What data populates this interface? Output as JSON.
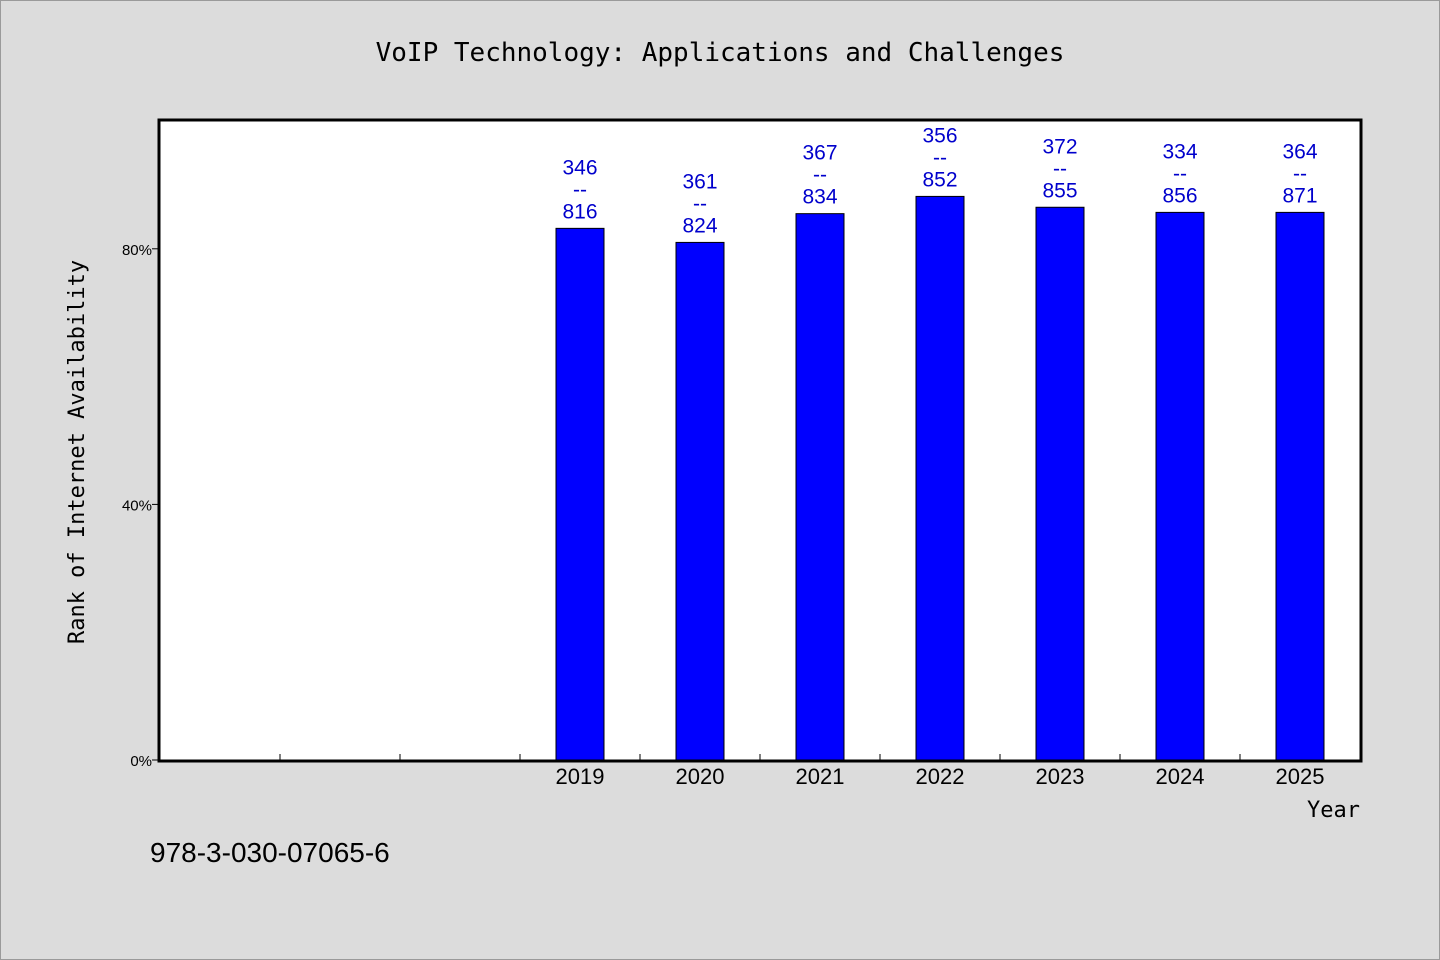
{
  "chart_data": {
    "type": "bar",
    "title": "VoIP Technology: Applications and Challenges",
    "xlabel": "Year",
    "ylabel": "Rank of Internet Availability",
    "categories": [
      "",
      "",
      "",
      "2019",
      "2020",
      "2021",
      "2022",
      "2023",
      "2024",
      "2025"
    ],
    "values": [
      null,
      null,
      null,
      83.2,
      81.0,
      85.5,
      88.2,
      86.5,
      85.7,
      85.7
    ],
    "bar_labels": [
      null,
      null,
      null,
      [
        "346",
        "--",
        "816"
      ],
      [
        "361",
        "--",
        "824"
      ],
      [
        "367",
        "--",
        "834"
      ],
      [
        "356",
        "--",
        "852"
      ],
      [
        "372",
        "--",
        "855"
      ],
      [
        "334",
        "--",
        "856"
      ],
      [
        "364",
        "--",
        "871"
      ]
    ],
    "yticks": [
      0,
      40,
      80
    ],
    "ytick_labels": [
      "0%",
      "40%",
      "80%"
    ],
    "ylim": [
      0,
      100
    ],
    "bar_color": "#0000ff",
    "label_color": "#0000cc",
    "grid": false,
    "legend": false
  },
  "footer": {
    "isbn": "978-3-030-07065-6"
  }
}
